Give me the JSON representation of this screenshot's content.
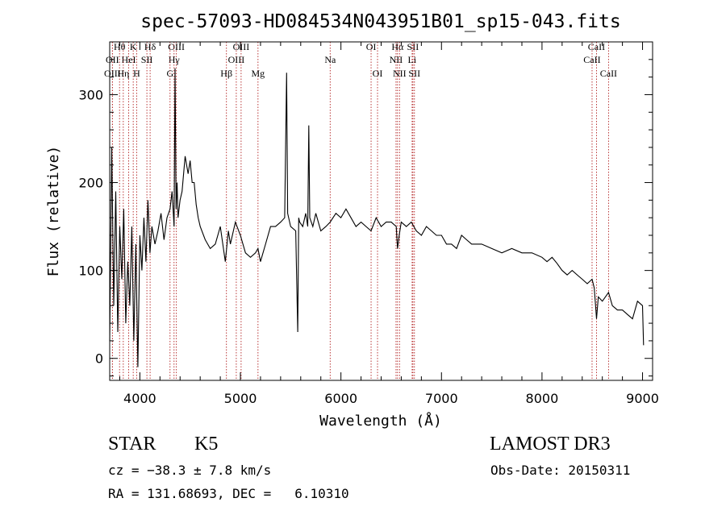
{
  "chart_data": {
    "type": "line",
    "title": "spec-57093-HD084534N043951B01_sp15-043.fits",
    "xlabel": "Wavelength (Å)",
    "ylabel": "Flux (relative)",
    "xlim": [
      3700,
      9100
    ],
    "ylim": [
      -25,
      360
    ],
    "xticks": [
      4000,
      5000,
      6000,
      7000,
      8000,
      9000
    ],
    "yticks": [
      0,
      100,
      200,
      300
    ],
    "line_color": "#000000",
    "marker_color": "#b22222",
    "series": [
      {
        "name": "spectrum",
        "x": [
          3700,
          3720,
          3740,
          3760,
          3780,
          3800,
          3820,
          3840,
          3860,
          3880,
          3900,
          3920,
          3940,
          3960,
          3980,
          4000,
          4020,
          4040,
          4060,
          4080,
          4100,
          4120,
          4150,
          4180,
          4210,
          4240,
          4270,
          4300,
          4320,
          4340,
          4350,
          4360,
          4370,
          4380,
          4400,
          4420,
          4450,
          4480,
          4500,
          4520,
          4540,
          4560,
          4580,
          4600,
          4650,
          4700,
          4750,
          4800,
          4850,
          4880,
          4900,
          4950,
          5000,
          5050,
          5100,
          5150,
          5175,
          5200,
          5250,
          5300,
          5350,
          5400,
          5440,
          5460,
          5470,
          5500,
          5550,
          5570,
          5580,
          5590,
          5620,
          5650,
          5670,
          5680,
          5690,
          5720,
          5750,
          5800,
          5850,
          5893,
          5950,
          6000,
          6050,
          6100,
          6150,
          6200,
          6250,
          6300,
          6350,
          6400,
          6450,
          6500,
          6550,
          6563,
          6580,
          6600,
          6650,
          6700,
          6750,
          6800,
          6850,
          6900,
          6950,
          7000,
          7050,
          7100,
          7150,
          7200,
          7250,
          7300,
          7400,
          7500,
          7600,
          7700,
          7800,
          7900,
          8000,
          8050,
          8100,
          8150,
          8200,
          8250,
          8300,
          8350,
          8400,
          8450,
          8498,
          8520,
          8542,
          8560,
          8600,
          8662,
          8700,
          8750,
          8800,
          8850,
          8900,
          8950,
          9000,
          9010
        ],
        "y": [
          20,
          240,
          60,
          190,
          30,
          150,
          90,
          170,
          40,
          110,
          60,
          150,
          20,
          130,
          -10,
          140,
          100,
          160,
          110,
          180,
          120,
          150,
          130,
          145,
          165,
          135,
          160,
          170,
          190,
          150,
          330,
          170,
          200,
          160,
          180,
          190,
          230,
          210,
          225,
          200,
          200,
          175,
          160,
          150,
          135,
          125,
          130,
          150,
          110,
          145,
          130,
          155,
          140,
          120,
          115,
          120,
          125,
          110,
          130,
          150,
          150,
          155,
          160,
          325,
          165,
          150,
          145,
          30,
          160,
          155,
          150,
          165,
          150,
          265,
          160,
          150,
          165,
          145,
          150,
          155,
          165,
          160,
          170,
          160,
          150,
          155,
          150,
          145,
          160,
          150,
          155,
          155,
          150,
          125,
          140,
          155,
          150,
          155,
          145,
          140,
          150,
          145,
          140,
          140,
          130,
          130,
          125,
          140,
          135,
          130,
          130,
          125,
          120,
          125,
          120,
          120,
          115,
          110,
          115,
          108,
          100,
          95,
          100,
          95,
          90,
          85,
          90,
          80,
          45,
          70,
          65,
          75,
          60,
          55,
          55,
          50,
          45,
          65,
          60,
          15
        ]
      }
    ],
    "lines": [
      {
        "label": "Hθ",
        "x": 3798,
        "row": 1
      },
      {
        "label": "OII",
        "x": 3727,
        "row": 2
      },
      {
        "label": "OIII",
        "x": 3727,
        "row": 3
      },
      {
        "label": "HeI",
        "x": 3889,
        "row": 2
      },
      {
        "label": "K",
        "x": 3934,
        "row": 1
      },
      {
        "label": "Hη",
        "x": 3835,
        "row": 3
      },
      {
        "label": "H",
        "x": 3968,
        "row": 3
      },
      {
        "label": "SII",
        "x": 4070,
        "row": 2
      },
      {
        "label": "Hδ",
        "x": 4102,
        "row": 1
      },
      {
        "label": "OIII",
        "x": 4363,
        "row": 1
      },
      {
        "label": "Hγ",
        "x": 4340,
        "row": 2
      },
      {
        "label": "G",
        "x": 4300,
        "row": 3
      },
      {
        "label": "Hβ",
        "x": 4861,
        "row": 3
      },
      {
        "label": "OIII",
        "x": 5007,
        "row": 1
      },
      {
        "label": "OIII",
        "x": 4959,
        "row": 2
      },
      {
        "label": "Mg",
        "x": 5175,
        "row": 3
      },
      {
        "label": "Na",
        "x": 5893,
        "row": 2
      },
      {
        "label": "OI",
        "x": 6300,
        "row": 1
      },
      {
        "label": "OI",
        "x": 6364,
        "row": 3
      },
      {
        "label": "Hα",
        "x": 6563,
        "row": 1
      },
      {
        "label": "NII",
        "x": 6548,
        "row": 2
      },
      {
        "label": "NII",
        "x": 6583,
        "row": 3
      },
      {
        "label": "SII",
        "x": 6716,
        "row": 1
      },
      {
        "label": "Li",
        "x": 6708,
        "row": 2
      },
      {
        "label": "SII",
        "x": 6731,
        "row": 3
      },
      {
        "label": "CaII",
        "x": 8542,
        "row": 1
      },
      {
        "label": "CaII",
        "x": 8498,
        "row": 2
      },
      {
        "label": "CaII",
        "x": 8662,
        "row": 3
      }
    ]
  },
  "info": {
    "class": "STAR",
    "subclass": "K5",
    "survey": "LAMOST DR3",
    "cz": "cz = −38.3 ± 7.8 km/s",
    "obs_date": "Obs-Date: 20150311",
    "radec": "RA = 131.68693, DEC =   6.10310"
  }
}
